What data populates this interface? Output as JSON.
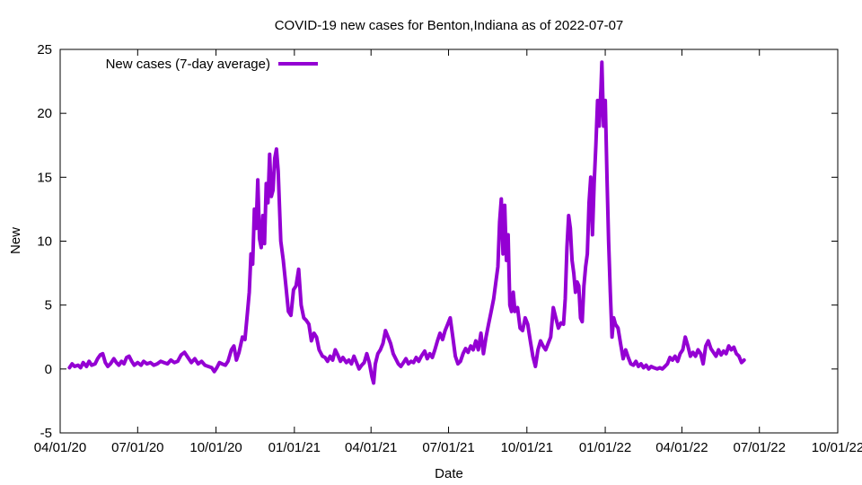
{
  "chart_data": {
    "type": "line",
    "title": "COVID-19 new cases for Benton,Indiana as of 2022-07-07",
    "xlabel": "Date",
    "ylabel": "New",
    "xlim": [
      "2020-04-01",
      "2022-10-01"
    ],
    "ylim": [
      -5,
      25
    ],
    "y_ticks": [
      -5,
      0,
      5,
      10,
      15,
      20,
      25
    ],
    "x_ticks": [
      {
        "date": "2020-04-01",
        "label": "04/01/20"
      },
      {
        "date": "2020-07-01",
        "label": "07/01/20"
      },
      {
        "date": "2020-10-01",
        "label": "10/01/20"
      },
      {
        "date": "2021-01-01",
        "label": "01/01/21"
      },
      {
        "date": "2021-04-01",
        "label": "04/01/21"
      },
      {
        "date": "2021-07-01",
        "label": "07/01/21"
      },
      {
        "date": "2021-10-01",
        "label": "10/01/21"
      },
      {
        "date": "2022-01-01",
        "label": "01/01/22"
      },
      {
        "date": "2022-04-01",
        "label": "04/01/22"
      },
      {
        "date": "2022-07-01",
        "label": "07/01/22"
      },
      {
        "date": "2022-10-01",
        "label": "10/01/22"
      }
    ],
    "grid": false,
    "legend_position": "top-left",
    "series": [
      {
        "name": "New cases (7-day average)",
        "color": "#9400d3",
        "points": [
          [
            "2020-04-12",
            0.1
          ],
          [
            "2020-04-15",
            0.4
          ],
          [
            "2020-04-18",
            0.2
          ],
          [
            "2020-04-22",
            0.3
          ],
          [
            "2020-04-25",
            0.1
          ],
          [
            "2020-04-28",
            0.5
          ],
          [
            "2020-05-02",
            0.2
          ],
          [
            "2020-05-05",
            0.6
          ],
          [
            "2020-05-08",
            0.3
          ],
          [
            "2020-05-12",
            0.4
          ],
          [
            "2020-05-15",
            0.8
          ],
          [
            "2020-05-18",
            1.1
          ],
          [
            "2020-05-21",
            1.2
          ],
          [
            "2020-05-24",
            0.5
          ],
          [
            "2020-05-27",
            0.2
          ],
          [
            "2020-05-30",
            0.4
          ],
          [
            "2020-06-03",
            0.8
          ],
          [
            "2020-06-06",
            0.5
          ],
          [
            "2020-06-09",
            0.3
          ],
          [
            "2020-06-12",
            0.6
          ],
          [
            "2020-06-15",
            0.4
          ],
          [
            "2020-06-18",
            0.9
          ],
          [
            "2020-06-21",
            1.0
          ],
          [
            "2020-06-24",
            0.6
          ],
          [
            "2020-06-27",
            0.3
          ],
          [
            "2020-07-01",
            0.5
          ],
          [
            "2020-07-05",
            0.3
          ],
          [
            "2020-07-08",
            0.6
          ],
          [
            "2020-07-12",
            0.4
          ],
          [
            "2020-07-16",
            0.5
          ],
          [
            "2020-07-20",
            0.3
          ],
          [
            "2020-07-24",
            0.4
          ],
          [
            "2020-07-28",
            0.6
          ],
          [
            "2020-08-01",
            0.5
          ],
          [
            "2020-08-05",
            0.4
          ],
          [
            "2020-08-09",
            0.7
          ],
          [
            "2020-08-13",
            0.5
          ],
          [
            "2020-08-17",
            0.6
          ],
          [
            "2020-08-21",
            1.1
          ],
          [
            "2020-08-25",
            1.3
          ],
          [
            "2020-08-29",
            0.9
          ],
          [
            "2020-09-02",
            0.5
          ],
          [
            "2020-09-06",
            0.8
          ],
          [
            "2020-09-10",
            0.4
          ],
          [
            "2020-09-14",
            0.6
          ],
          [
            "2020-09-18",
            0.3
          ],
          [
            "2020-09-22",
            0.2
          ],
          [
            "2020-09-26",
            0.1
          ],
          [
            "2020-09-29",
            -0.2
          ],
          [
            "2020-10-02",
            0.1
          ],
          [
            "2020-10-05",
            0.5
          ],
          [
            "2020-10-08",
            0.4
          ],
          [
            "2020-10-12",
            0.3
          ],
          [
            "2020-10-15",
            0.6
          ],
          [
            "2020-10-19",
            1.5
          ],
          [
            "2020-10-22",
            1.8
          ],
          [
            "2020-10-25",
            0.7
          ],
          [
            "2020-10-28",
            1.3
          ],
          [
            "2020-11-01",
            2.5
          ],
          [
            "2020-11-04",
            2.3
          ],
          [
            "2020-11-07",
            4.5
          ],
          [
            "2020-11-09",
            6.0
          ],
          [
            "2020-11-11",
            9.0
          ],
          [
            "2020-11-13",
            8.2
          ],
          [
            "2020-11-15",
            12.5
          ],
          [
            "2020-11-17",
            11.0
          ],
          [
            "2020-11-19",
            14.8
          ],
          [
            "2020-11-21",
            10.2
          ],
          [
            "2020-11-23",
            9.5
          ],
          [
            "2020-11-25",
            12.0
          ],
          [
            "2020-11-27",
            9.8
          ],
          [
            "2020-11-29",
            14.5
          ],
          [
            "2020-12-01",
            13.0
          ],
          [
            "2020-12-03",
            16.8
          ],
          [
            "2020-12-05",
            13.5
          ],
          [
            "2020-12-07",
            14.0
          ],
          [
            "2020-12-09",
            16.5
          ],
          [
            "2020-12-11",
            17.2
          ],
          [
            "2020-12-13",
            15.5
          ],
          [
            "2020-12-16",
            10.0
          ],
          [
            "2020-12-19",
            8.5
          ],
          [
            "2020-12-22",
            6.5
          ],
          [
            "2020-12-25",
            4.5
          ],
          [
            "2020-12-28",
            4.2
          ],
          [
            "2020-12-31",
            6.2
          ],
          [
            "2021-01-03",
            6.5
          ],
          [
            "2021-01-06",
            7.8
          ],
          [
            "2021-01-09",
            5.0
          ],
          [
            "2021-01-12",
            4.0
          ],
          [
            "2021-01-15",
            3.8
          ],
          [
            "2021-01-18",
            3.5
          ],
          [
            "2021-01-21",
            2.2
          ],
          [
            "2021-01-24",
            2.8
          ],
          [
            "2021-01-27",
            2.5
          ],
          [
            "2021-01-30",
            1.5
          ],
          [
            "2021-02-03",
            1.0
          ],
          [
            "2021-02-06",
            0.9
          ],
          [
            "2021-02-09",
            0.6
          ],
          [
            "2021-02-12",
            1.0
          ],
          [
            "2021-02-15",
            0.7
          ],
          [
            "2021-02-18",
            1.5
          ],
          [
            "2021-02-21",
            1.1
          ],
          [
            "2021-02-24",
            0.6
          ],
          [
            "2021-02-27",
            0.9
          ],
          [
            "2021-03-03",
            0.5
          ],
          [
            "2021-03-06",
            0.7
          ],
          [
            "2021-03-09",
            0.4
          ],
          [
            "2021-03-12",
            1.0
          ],
          [
            "2021-03-15",
            0.5
          ],
          [
            "2021-03-18",
            0.0
          ],
          [
            "2021-03-21",
            0.3
          ],
          [
            "2021-03-24",
            0.5
          ],
          [
            "2021-03-27",
            1.2
          ],
          [
            "2021-03-30",
            0.5
          ],
          [
            "2021-04-02",
            -0.6
          ],
          [
            "2021-04-04",
            -1.1
          ],
          [
            "2021-04-06",
            0.4
          ],
          [
            "2021-04-09",
            1.2
          ],
          [
            "2021-04-12",
            1.5
          ],
          [
            "2021-04-15",
            2.0
          ],
          [
            "2021-04-18",
            3.0
          ],
          [
            "2021-04-21",
            2.5
          ],
          [
            "2021-04-24",
            2.0
          ],
          [
            "2021-04-27",
            1.2
          ],
          [
            "2021-04-30",
            0.8
          ],
          [
            "2021-05-03",
            0.4
          ],
          [
            "2021-05-06",
            0.2
          ],
          [
            "2021-05-09",
            0.5
          ],
          [
            "2021-05-12",
            0.8
          ],
          [
            "2021-05-15",
            0.4
          ],
          [
            "2021-05-18",
            0.6
          ],
          [
            "2021-05-21",
            0.5
          ],
          [
            "2021-05-24",
            0.9
          ],
          [
            "2021-05-27",
            0.6
          ],
          [
            "2021-05-30",
            1.0
          ],
          [
            "2021-06-03",
            1.4
          ],
          [
            "2021-06-06",
            0.8
          ],
          [
            "2021-06-09",
            1.2
          ],
          [
            "2021-06-12",
            0.9
          ],
          [
            "2021-06-15",
            1.5
          ],
          [
            "2021-06-18",
            2.2
          ],
          [
            "2021-06-21",
            2.8
          ],
          [
            "2021-06-24",
            2.3
          ],
          [
            "2021-06-27",
            3.0
          ],
          [
            "2021-06-30",
            3.5
          ],
          [
            "2021-07-03",
            4.0
          ],
          [
            "2021-07-06",
            2.5
          ],
          [
            "2021-07-09",
            1.0
          ],
          [
            "2021-07-12",
            0.4
          ],
          [
            "2021-07-15",
            0.6
          ],
          [
            "2021-07-18",
            1.2
          ],
          [
            "2021-07-21",
            1.6
          ],
          [
            "2021-07-24",
            1.3
          ],
          [
            "2021-07-27",
            1.8
          ],
          [
            "2021-07-30",
            1.5
          ],
          [
            "2021-08-02",
            2.2
          ],
          [
            "2021-08-05",
            1.5
          ],
          [
            "2021-08-08",
            2.8
          ],
          [
            "2021-08-11",
            1.2
          ],
          [
            "2021-08-14",
            2.5
          ],
          [
            "2021-08-17",
            3.5
          ],
          [
            "2021-08-20",
            4.5
          ],
          [
            "2021-08-23",
            5.5
          ],
          [
            "2021-08-26",
            7.0
          ],
          [
            "2021-08-28",
            8.0
          ],
          [
            "2021-08-30",
            11.5
          ],
          [
            "2021-09-01",
            13.3
          ],
          [
            "2021-09-03",
            9.0
          ],
          [
            "2021-09-05",
            12.8
          ],
          [
            "2021-09-07",
            8.5
          ],
          [
            "2021-09-09",
            10.5
          ],
          [
            "2021-09-11",
            5.0
          ],
          [
            "2021-09-13",
            4.5
          ],
          [
            "2021-09-15",
            6.0
          ],
          [
            "2021-09-17",
            4.5
          ],
          [
            "2021-09-20",
            4.8
          ],
          [
            "2021-09-23",
            3.2
          ],
          [
            "2021-09-26",
            3.0
          ],
          [
            "2021-09-29",
            4.0
          ],
          [
            "2021-10-02",
            3.5
          ],
          [
            "2021-10-05",
            2.2
          ],
          [
            "2021-10-08",
            1.0
          ],
          [
            "2021-10-11",
            0.2
          ],
          [
            "2021-10-14",
            1.5
          ],
          [
            "2021-10-17",
            2.2
          ],
          [
            "2021-10-20",
            1.8
          ],
          [
            "2021-10-23",
            1.5
          ],
          [
            "2021-10-26",
            2.0
          ],
          [
            "2021-10-29",
            2.5
          ],
          [
            "2021-11-01",
            4.8
          ],
          [
            "2021-11-04",
            4.0
          ],
          [
            "2021-11-07",
            3.2
          ],
          [
            "2021-11-10",
            3.6
          ],
          [
            "2021-11-13",
            3.5
          ],
          [
            "2021-11-15",
            5.5
          ],
          [
            "2021-11-17",
            9.5
          ],
          [
            "2021-11-19",
            12.0
          ],
          [
            "2021-11-21",
            11.0
          ],
          [
            "2021-11-23",
            8.5
          ],
          [
            "2021-11-25",
            7.5
          ],
          [
            "2021-11-27",
            6.0
          ],
          [
            "2021-11-29",
            6.8
          ],
          [
            "2021-12-01",
            6.5
          ],
          [
            "2021-12-03",
            4.0
          ],
          [
            "2021-12-05",
            3.7
          ],
          [
            "2021-12-07",
            6.5
          ],
          [
            "2021-12-09",
            8.0
          ],
          [
            "2021-12-11",
            9.0
          ],
          [
            "2021-12-13",
            13.0
          ],
          [
            "2021-12-15",
            15.0
          ],
          [
            "2021-12-17",
            10.5
          ],
          [
            "2021-12-19",
            14.5
          ],
          [
            "2021-12-21",
            17.5
          ],
          [
            "2021-12-23",
            21.0
          ],
          [
            "2021-12-25",
            19.0
          ],
          [
            "2021-12-27",
            22.0
          ],
          [
            "2021-12-28",
            24.0
          ],
          [
            "2021-12-30",
            19.0
          ],
          [
            "2022-01-01",
            21.0
          ],
          [
            "2022-01-03",
            15.0
          ],
          [
            "2022-01-05",
            10.0
          ],
          [
            "2022-01-07",
            6.0
          ],
          [
            "2022-01-09",
            2.5
          ],
          [
            "2022-01-11",
            4.0
          ],
          [
            "2022-01-13",
            3.5
          ],
          [
            "2022-01-16",
            3.2
          ],
          [
            "2022-01-19",
            2.0
          ],
          [
            "2022-01-22",
            0.8
          ],
          [
            "2022-01-25",
            1.5
          ],
          [
            "2022-01-28",
            0.9
          ],
          [
            "2022-01-31",
            0.4
          ],
          [
            "2022-02-03",
            0.3
          ],
          [
            "2022-02-06",
            0.6
          ],
          [
            "2022-02-09",
            0.2
          ],
          [
            "2022-02-12",
            0.4
          ],
          [
            "2022-02-15",
            0.1
          ],
          [
            "2022-02-18",
            0.3
          ],
          [
            "2022-02-21",
            0.0
          ],
          [
            "2022-02-24",
            0.2
          ],
          [
            "2022-02-27",
            0.1
          ],
          [
            "2022-03-03",
            0.0
          ],
          [
            "2022-03-06",
            0.1
          ],
          [
            "2022-03-09",
            0.0
          ],
          [
            "2022-03-12",
            0.2
          ],
          [
            "2022-03-15",
            0.4
          ],
          [
            "2022-03-18",
            0.9
          ],
          [
            "2022-03-21",
            0.7
          ],
          [
            "2022-03-24",
            1.0
          ],
          [
            "2022-03-27",
            0.6
          ],
          [
            "2022-03-30",
            1.2
          ],
          [
            "2022-04-02",
            1.5
          ],
          [
            "2022-04-05",
            2.5
          ],
          [
            "2022-04-08",
            1.8
          ],
          [
            "2022-04-11",
            1.0
          ],
          [
            "2022-04-14",
            1.3
          ],
          [
            "2022-04-17",
            1.0
          ],
          [
            "2022-04-20",
            1.5
          ],
          [
            "2022-04-23",
            1.2
          ],
          [
            "2022-04-26",
            0.4
          ],
          [
            "2022-04-29",
            1.8
          ],
          [
            "2022-05-02",
            2.2
          ],
          [
            "2022-05-05",
            1.6
          ],
          [
            "2022-05-08",
            1.3
          ],
          [
            "2022-05-11",
            1.0
          ],
          [
            "2022-05-14",
            1.5
          ],
          [
            "2022-05-17",
            1.1
          ],
          [
            "2022-05-20",
            1.4
          ],
          [
            "2022-05-23",
            1.2
          ],
          [
            "2022-05-26",
            1.8
          ],
          [
            "2022-05-29",
            1.5
          ],
          [
            "2022-06-01",
            1.7
          ],
          [
            "2022-06-04",
            1.2
          ],
          [
            "2022-06-07",
            1.0
          ],
          [
            "2022-06-10",
            0.5
          ],
          [
            "2022-06-13",
            0.7
          ]
        ]
      }
    ]
  }
}
